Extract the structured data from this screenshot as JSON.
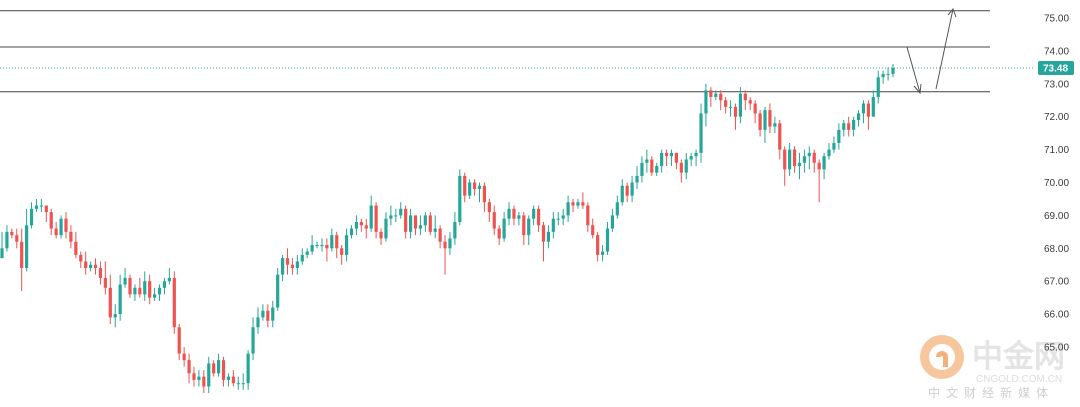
{
  "colors": {
    "up": "#26a69a",
    "down": "#ef5350",
    "price_tag_bg": "#26a69a",
    "level_line": "#454545",
    "current_price_line": "#26a69a",
    "arrow": "#555555",
    "watermark": "#e8e8e8",
    "watermark_logo": "#f2b27a"
  },
  "chart_data": {
    "type": "candlestick",
    "title": "",
    "xlabel": "",
    "ylabel": "",
    "ylim": [
      63.7,
      75.5
    ],
    "y_ticks": [
      "75.00",
      "74.00",
      "73.00",
      "72.00",
      "71.00",
      "70.00",
      "69.00",
      "68.00",
      "67.00",
      "66.00",
      "65.00"
    ],
    "current_price": 73.48,
    "current_price_label": "73.48",
    "horizontal_levels": [
      75.22,
      74.12,
      72.76
    ],
    "grid": false,
    "legend": "none",
    "series": [
      {
        "close": [
          68.0,
          68.5,
          68.4,
          68.2,
          67.4,
          68.7,
          69.2,
          69.3,
          69.3,
          69.1,
          68.6,
          68.4,
          68.9,
          68.5,
          68.2,
          67.8,
          67.6,
          67.4,
          67.5,
          67.4,
          67.1,
          66.8,
          65.9,
          66.0,
          66.9,
          67.1,
          66.6,
          66.8,
          66.6,
          67.0,
          66.5,
          66.6,
          66.8,
          67.0,
          67.1,
          65.6,
          64.8,
          64.6,
          64.2,
          64.0,
          64.1,
          63.8,
          64.5,
          64.2,
          64.6,
          64.0,
          64.1,
          63.9,
          63.9,
          63.9,
          64.8,
          65.6,
          65.9,
          66.1,
          65.8,
          66.2,
          67.2,
          67.7,
          67.5,
          67.4,
          67.6,
          67.8,
          67.9,
          68.1,
          68.1,
          68.1,
          68.0,
          68.4,
          68.0,
          67.8,
          68.4,
          68.6,
          68.8,
          68.7,
          68.6,
          69.3,
          68.5,
          68.3,
          68.9,
          69.0,
          69.0,
          69.2,
          68.5,
          69.0,
          68.6,
          68.7,
          69.0,
          68.5,
          68.6,
          68.2,
          68.0,
          68.3,
          68.8,
          70.2,
          69.6,
          70.0,
          69.8,
          69.9,
          69.4,
          69.1,
          68.6,
          68.3,
          68.9,
          69.2,
          68.9,
          69.0,
          68.4,
          68.9,
          69.2,
          68.7,
          68.2,
          68.5,
          68.9,
          68.9,
          69.0,
          69.4,
          69.3,
          69.4,
          69.3,
          68.7,
          68.4,
          67.8,
          67.9,
          68.6,
          69.0,
          69.4,
          69.9,
          69.6,
          70.0,
          70.2,
          70.6,
          70.7,
          70.3,
          70.5,
          70.9,
          70.8,
          70.9,
          70.6,
          70.3,
          70.7,
          70.8,
          70.9,
          72.1,
          72.8,
          72.6,
          72.7,
          72.5,
          72.3,
          72.3,
          72.0,
          72.7,
          72.5,
          72.4,
          72.1,
          71.6,
          72.2,
          71.7,
          71.8,
          71.0,
          70.4,
          71.0,
          70.5,
          70.6,
          70.8,
          70.9,
          70.6,
          70.4,
          70.8,
          71.0,
          71.2,
          71.6,
          71.8,
          71.6,
          71.9,
          72.1,
          72.4,
          72.0,
          72.6,
          73.2,
          73.3,
          73.3,
          73.48
        ],
        "high": [
          68.5,
          68.7,
          68.6,
          68.6,
          68.6,
          69.2,
          69.4,
          69.5,
          69.5,
          69.3,
          69.2,
          68.8,
          69.0,
          69.1,
          68.7,
          68.5,
          67.9,
          67.9,
          67.6,
          67.7,
          67.6,
          67.6,
          67.2,
          66.3,
          67.2,
          67.4,
          67.2,
          66.9,
          67.1,
          67.3,
          67.2,
          66.8,
          66.9,
          67.1,
          67.4,
          67.3,
          65.7,
          65.0,
          64.8,
          64.4,
          64.3,
          64.3,
          64.7,
          64.6,
          64.8,
          64.7,
          64.2,
          64.3,
          64.1,
          64.2,
          64.9,
          65.9,
          66.2,
          66.3,
          66.3,
          66.4,
          67.4,
          67.8,
          68.0,
          67.7,
          67.8,
          68.0,
          68.0,
          68.4,
          68.2,
          68.3,
          68.3,
          68.6,
          68.5,
          68.1,
          68.6,
          68.7,
          69.0,
          68.9,
          68.9,
          69.6,
          69.4,
          68.6,
          69.1,
          69.3,
          69.2,
          69.4,
          69.3,
          69.2,
          69.0,
          69.0,
          69.1,
          69.1,
          69.0,
          68.7,
          68.4,
          68.5,
          69.1,
          70.4,
          70.3,
          70.1,
          70.1,
          70.0,
          70.0,
          69.5,
          69.3,
          68.7,
          69.1,
          69.4,
          69.3,
          69.1,
          69.1,
          69.0,
          69.3,
          69.3,
          68.8,
          68.7,
          69.1,
          69.1,
          69.2,
          69.6,
          69.5,
          69.5,
          69.7,
          69.4,
          68.9,
          68.5,
          68.1,
          68.8,
          69.2,
          69.6,
          70.1,
          70.0,
          70.2,
          70.5,
          70.8,
          71.0,
          70.8,
          70.6,
          71.0,
          71.0,
          71.0,
          70.9,
          70.7,
          70.9,
          70.9,
          71.0,
          72.4,
          73.0,
          72.9,
          72.8,
          72.8,
          72.6,
          72.5,
          72.4,
          72.9,
          72.8,
          72.6,
          72.5,
          72.2,
          72.3,
          72.4,
          72.0,
          71.9,
          71.1,
          71.2,
          71.1,
          70.9,
          71.0,
          71.1,
          71.0,
          70.7,
          70.9,
          71.2,
          71.4,
          71.8,
          71.9,
          72.0,
          72.0,
          72.2,
          72.5,
          72.5,
          72.8,
          73.4,
          73.4,
          73.5,
          73.6
        ],
        "low": [
          67.8,
          67.9,
          68.3,
          68.0,
          66.7,
          67.3,
          68.6,
          69.1,
          69.1,
          68.8,
          68.4,
          68.3,
          68.3,
          68.3,
          68.0,
          67.7,
          67.4,
          67.2,
          67.3,
          67.2,
          66.9,
          66.6,
          65.7,
          65.6,
          65.8,
          66.8,
          66.5,
          66.4,
          66.5,
          66.4,
          66.3,
          66.4,
          66.4,
          66.6,
          66.9,
          65.4,
          64.6,
          64.4,
          63.9,
          63.8,
          63.8,
          63.6,
          63.6,
          64.1,
          64.1,
          63.8,
          63.8,
          63.8,
          63.7,
          63.7,
          63.7,
          64.6,
          65.4,
          65.8,
          65.6,
          65.6,
          66.1,
          67.0,
          67.2,
          67.2,
          67.2,
          67.5,
          67.7,
          67.8,
          68.0,
          67.9,
          67.6,
          67.9,
          67.7,
          67.5,
          67.6,
          68.3,
          68.4,
          68.5,
          68.3,
          68.5,
          68.3,
          68.1,
          68.2,
          68.7,
          68.8,
          68.9,
          68.3,
          68.3,
          68.4,
          68.4,
          68.5,
          68.4,
          68.3,
          68.0,
          67.2,
          67.8,
          68.1,
          68.7,
          69.4,
          69.5,
          69.6,
          69.4,
          69.1,
          68.8,
          68.4,
          68.1,
          68.2,
          68.7,
          68.7,
          68.7,
          68.1,
          68.1,
          68.7,
          68.5,
          67.6,
          68.0,
          68.3,
          68.7,
          68.7,
          68.8,
          69.1,
          69.2,
          69.2,
          68.5,
          68.3,
          67.6,
          67.6,
          67.8,
          68.5,
          68.9,
          69.3,
          69.4,
          69.4,
          69.8,
          70.0,
          70.3,
          70.2,
          70.2,
          70.3,
          70.5,
          70.5,
          70.4,
          70.0,
          70.1,
          70.5,
          70.5,
          70.6,
          71.7,
          72.3,
          72.5,
          72.2,
          72.1,
          72.0,
          71.6,
          71.8,
          72.2,
          72.2,
          71.8,
          71.4,
          71.2,
          71.5,
          71.5,
          70.7,
          69.9,
          70.2,
          70.3,
          70.1,
          70.3,
          70.4,
          70.3,
          69.4,
          70.1,
          70.7,
          70.9,
          71.0,
          71.4,
          71.4,
          71.4,
          71.7,
          71.8,
          71.6,
          72.0,
          72.4,
          73.0,
          73.1,
          73.2
        ],
        "open": [
          67.7,
          68.0,
          68.5,
          68.4,
          68.2,
          67.4,
          68.7,
          69.2,
          69.3,
          69.3,
          69.1,
          68.6,
          68.4,
          68.9,
          68.5,
          68.2,
          67.8,
          67.6,
          67.4,
          67.5,
          67.4,
          67.1,
          66.8,
          65.9,
          66.0,
          66.9,
          67.1,
          66.6,
          66.8,
          66.6,
          67.0,
          66.5,
          66.6,
          66.8,
          67.0,
          67.1,
          65.6,
          64.8,
          64.6,
          64.2,
          64.0,
          64.1,
          63.8,
          64.5,
          64.2,
          64.6,
          64.0,
          64.1,
          63.9,
          63.9,
          63.9,
          64.8,
          65.6,
          65.9,
          66.1,
          65.8,
          66.2,
          67.2,
          67.7,
          67.5,
          67.4,
          67.6,
          67.8,
          67.9,
          68.1,
          68.1,
          68.1,
          68.0,
          68.4,
          68.0,
          67.8,
          68.4,
          68.6,
          68.8,
          68.7,
          68.6,
          69.3,
          68.5,
          68.3,
          68.9,
          69.0,
          69.0,
          69.2,
          68.5,
          69.0,
          68.6,
          68.7,
          69.0,
          68.5,
          68.6,
          68.2,
          68.0,
          68.3,
          68.8,
          70.2,
          69.6,
          70.0,
          69.8,
          69.9,
          69.4,
          69.1,
          68.6,
          68.3,
          68.9,
          69.2,
          68.9,
          69.0,
          68.4,
          68.9,
          69.2,
          68.7,
          68.2,
          68.5,
          68.9,
          68.9,
          69.0,
          69.4,
          69.3,
          69.4,
          69.3,
          68.7,
          68.4,
          67.8,
          67.9,
          68.6,
          69.0,
          69.4,
          69.9,
          69.6,
          70.0,
          70.2,
          70.6,
          70.7,
          70.3,
          70.5,
          70.9,
          70.8,
          70.9,
          70.6,
          70.3,
          70.7,
          70.8,
          70.9,
          72.1,
          72.8,
          72.6,
          72.7,
          72.5,
          72.3,
          72.3,
          72.0,
          72.7,
          72.5,
          72.4,
          72.1,
          71.6,
          72.2,
          71.7,
          71.8,
          71.0,
          70.4,
          71.0,
          70.5,
          70.6,
          70.8,
          70.9,
          70.6,
          70.4,
          70.8,
          71.0,
          71.2,
          71.6,
          71.8,
          71.6,
          71.9,
          72.1,
          72.4,
          72.0,
          72.6,
          73.2,
          73.3,
          73.3
        ]
      }
    ]
  },
  "watermark": {
    "title": "中金网",
    "url": "CNGOLD.COM.CN",
    "tagline": "中文财经新媒体"
  }
}
